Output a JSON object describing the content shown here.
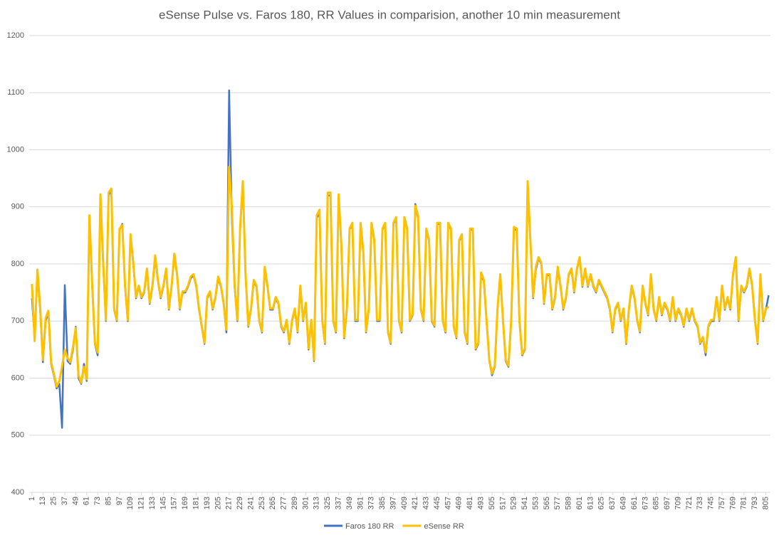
{
  "chart_data": {
    "type": "line",
    "title": "eSense Pulse vs. Faros 180, RR Values in comparision, another 10 min measurement",
    "x": [
      1,
      4,
      7,
      10,
      13,
      16,
      19,
      22,
      25,
      28,
      31,
      34,
      37,
      40,
      43,
      46,
      49,
      52,
      55,
      58,
      61,
      64,
      67,
      70,
      73,
      76,
      79,
      82,
      85,
      88,
      91,
      94,
      97,
      100,
      103,
      106,
      109,
      112,
      115,
      118,
      121,
      124,
      127,
      130,
      133,
      136,
      139,
      142,
      145,
      148,
      151,
      154,
      157,
      160,
      163,
      166,
      169,
      172,
      175,
      178,
      181,
      184,
      187,
      190,
      193,
      196,
      199,
      202,
      205,
      208,
      211,
      214,
      217,
      220,
      223,
      226,
      229,
      232,
      235,
      238,
      241,
      244,
      247,
      250,
      253,
      256,
      259,
      262,
      265,
      268,
      271,
      274,
      277,
      280,
      283,
      286,
      289,
      292,
      295,
      298,
      301,
      304,
      307,
      310,
      313,
      316,
      319,
      322,
      325,
      328,
      331,
      334,
      337,
      340,
      343,
      346,
      349,
      352,
      355,
      358,
      361,
      364,
      367,
      370,
      373,
      376,
      379,
      382,
      385,
      388,
      391,
      394,
      397,
      400,
      403,
      406,
      409,
      412,
      415,
      418,
      421,
      424,
      427,
      430,
      433,
      436,
      439,
      442,
      445,
      448,
      451,
      454,
      457,
      460,
      463,
      466,
      469,
      472,
      475,
      478,
      481,
      484,
      487,
      490,
      493,
      496,
      499,
      502,
      505,
      508,
      511,
      514,
      517,
      520,
      523,
      526,
      529,
      532,
      535,
      538,
      541,
      544,
      547,
      550,
      553,
      556,
      559,
      562,
      565,
      568,
      571,
      574,
      577,
      580,
      583,
      586,
      589,
      592,
      595,
      598,
      601,
      604,
      607,
      610,
      613,
      616,
      619,
      622,
      625,
      628,
      631,
      634,
      637,
      640,
      643,
      646,
      649,
      652,
      655,
      658,
      661,
      664,
      667,
      670,
      673,
      676,
      679,
      682,
      685,
      688,
      691,
      694,
      697,
      700,
      703,
      706,
      709,
      712,
      715,
      718,
      721,
      724,
      727,
      730,
      733,
      736,
      739,
      742,
      745,
      748,
      751,
      754,
      757,
      760,
      763,
      766,
      769,
      772,
      775,
      778,
      781,
      784,
      787,
      790,
      793,
      796,
      799,
      802,
      805,
      808
    ],
    "series": [
      {
        "name": "Faros 180 RR",
        "color": "#4472c4",
        "values": [
          740,
          670,
          785,
          720,
          628,
          700,
          715,
          625,
          605,
          582,
          590,
          513,
          763,
          630,
          625,
          650,
          690,
          600,
          590,
          625,
          595,
          880,
          760,
          660,
          640,
          920,
          800,
          700,
          920,
          930,
          720,
          700,
          860,
          870,
          760,
          700,
          850,
          800,
          740,
          760,
          740,
          750,
          790,
          730,
          760,
          810,
          770,
          740,
          760,
          790,
          720,
          760,
          815,
          780,
          720,
          750,
          750,
          760,
          775,
          780,
          760,
          720,
          690,
          660,
          740,
          750,
          720,
          740,
          775,
          760,
          730,
          680,
          1104,
          880,
          760,
          700,
          860,
          940,
          780,
          690,
          720,
          770,
          760,
          700,
          680,
          790,
          760,
          720,
          720,
          740,
          730,
          690,
          680,
          700,
          660,
          700,
          720,
          680,
          760,
          700,
          730,
          650,
          700,
          630,
          880,
          890,
          700,
          660,
          920,
          920,
          700,
          680,
          920,
          830,
          670,
          720,
          860,
          870,
          700,
          700,
          870,
          820,
          680,
          720,
          870,
          840,
          700,
          700,
          860,
          870,
          680,
          660,
          870,
          880,
          700,
          680,
          880,
          860,
          700,
          710,
          905,
          880,
          720,
          700,
          860,
          840,
          700,
          690,
          870,
          870,
          700,
          680,
          870,
          860,
          690,
          670,
          840,
          850,
          680,
          660,
          860,
          860,
          650,
          660,
          780,
          770,
          700,
          630,
          605,
          620,
          720,
          780,
          700,
          630,
          620,
          700,
          860,
          860,
          700,
          640,
          650,
          940,
          840,
          740,
          790,
          810,
          800,
          730,
          780,
          780,
          720,
          740,
          790,
          760,
          720,
          740,
          780,
          790,
          750,
          790,
          810,
          760,
          790,
          760,
          780,
          760,
          750,
          770,
          760,
          750,
          740,
          720,
          680,
          720,
          730,
          700,
          720,
          660,
          720,
          760,
          740,
          700,
          680,
          760,
          730,
          710,
          780,
          720,
          700,
          740,
          710,
          730,
          720,
          700,
          740,
          700,
          720,
          710,
          690,
          720,
          700,
          720,
          700,
          690,
          660,
          670,
          640,
          690,
          700,
          700,
          740,
          700,
          760,
          720,
          740,
          720,
          780,
          810,
          700,
          760,
          750,
          760,
          790,
          760,
          700,
          660,
          780,
          700,
          720,
          745
        ]
      },
      {
        "name": "eSense RR",
        "color": "#ffc000",
        "values": [
          765,
          665,
          790,
          725,
          632,
          705,
          718,
          628,
          608,
          585,
          595,
          620,
          650,
          635,
          628,
          655,
          688,
          605,
          592,
          620,
          598,
          885,
          765,
          662,
          645,
          922,
          805,
          702,
          925,
          932,
          722,
          702,
          862,
          868,
          762,
          702,
          852,
          802,
          742,
          762,
          742,
          752,
          792,
          732,
          762,
          815,
          772,
          742,
          762,
          792,
          722,
          762,
          818,
          782,
          722,
          752,
          752,
          762,
          778,
          782,
          762,
          722,
          692,
          662,
          742,
          752,
          722,
          742,
          778,
          762,
          732,
          685,
          970,
          900,
          765,
          702,
          862,
          945,
          782,
          692,
          722,
          772,
          762,
          702,
          682,
          795,
          762,
          722,
          722,
          742,
          732,
          692,
          682,
          702,
          662,
          702,
          722,
          682,
          762,
          702,
          732,
          652,
          702,
          632,
          885,
          895,
          702,
          662,
          925,
          925,
          702,
          682,
          922,
          832,
          672,
          722,
          862,
          872,
          702,
          702,
          872,
          822,
          682,
          722,
          872,
          842,
          702,
          702,
          862,
          872,
          682,
          662,
          872,
          882,
          702,
          682,
          882,
          862,
          702,
          712,
          902,
          885,
          722,
          702,
          862,
          842,
          702,
          692,
          872,
          872,
          702,
          682,
          872,
          862,
          692,
          672,
          842,
          852,
          682,
          662,
          862,
          862,
          652,
          662,
          785,
          772,
          702,
          632,
          608,
          622,
          722,
          782,
          702,
          632,
          622,
          702,
          865,
          862,
          702,
          642,
          652,
          945,
          842,
          742,
          795,
          812,
          802,
          732,
          782,
          782,
          722,
          742,
          795,
          762,
          722,
          742,
          782,
          792,
          752,
          792,
          812,
          762,
          792,
          762,
          782,
          762,
          752,
          772,
          762,
          752,
          742,
          722,
          682,
          722,
          732,
          702,
          722,
          662,
          722,
          762,
          742,
          702,
          682,
          762,
          732,
          712,
          782,
          722,
          702,
          742,
          712,
          732,
          722,
          702,
          742,
          702,
          722,
          712,
          692,
          722,
          702,
          722,
          702,
          692,
          662,
          672,
          645,
          692,
          702,
          702,
          742,
          702,
          762,
          722,
          742,
          722,
          782,
          812,
          702,
          762,
          752,
          762,
          792,
          762,
          702,
          662,
          782,
          702,
          722,
          725
        ]
      }
    ],
    "xlim": [
      -2,
      810
    ],
    "xticks": [
      1,
      13,
      25,
      37,
      49,
      61,
      73,
      85,
      97,
      109,
      121,
      133,
      145,
      157,
      169,
      181,
      193,
      205,
      217,
      229,
      241,
      253,
      265,
      277,
      289,
      301,
      313,
      325,
      337,
      349,
      361,
      373,
      385,
      397,
      409,
      421,
      433,
      445,
      457,
      469,
      481,
      493,
      505,
      517,
      529,
      541,
      553,
      565,
      577,
      589,
      601,
      613,
      625,
      637,
      649,
      661,
      673,
      685,
      697,
      709,
      721,
      733,
      745,
      757,
      769,
      781,
      793,
      805
    ],
    "ylim": [
      400,
      1200
    ],
    "yticks": [
      400,
      500,
      600,
      700,
      800,
      900,
      1000,
      1100,
      1200
    ],
    "grid": true
  }
}
